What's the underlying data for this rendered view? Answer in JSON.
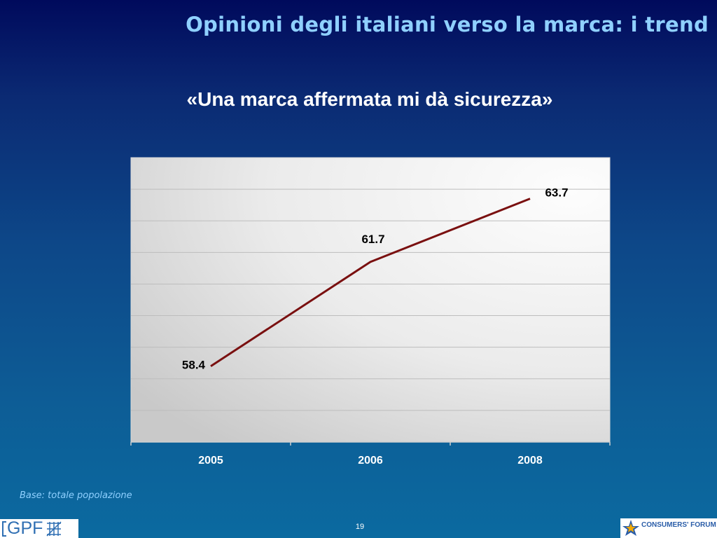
{
  "slide": {
    "title": "Opinioni degli italiani verso la marca: i trend",
    "base_note": "Base: totale popolazione",
    "page_number": "19"
  },
  "logos": {
    "left_text": "GPF",
    "right_text": "CONSUMERS' FORUM"
  },
  "colors": {
    "title": "#8fd0ff",
    "line": "#7a1010",
    "plot_area": "#e6e6e6"
  },
  "chart_data": {
    "type": "line",
    "title": "«Una marca affermata mi dà sicurezza»",
    "categories": [
      "2005",
      "2006",
      "2008"
    ],
    "series": [
      {
        "values": [
          58.4,
          61.7,
          63.7
        ]
      }
    ],
    "data_labels": [
      "58.4",
      "61.7",
      "63.7"
    ],
    "ylim": [
      56,
      65
    ],
    "grid": true,
    "legend": "none"
  }
}
